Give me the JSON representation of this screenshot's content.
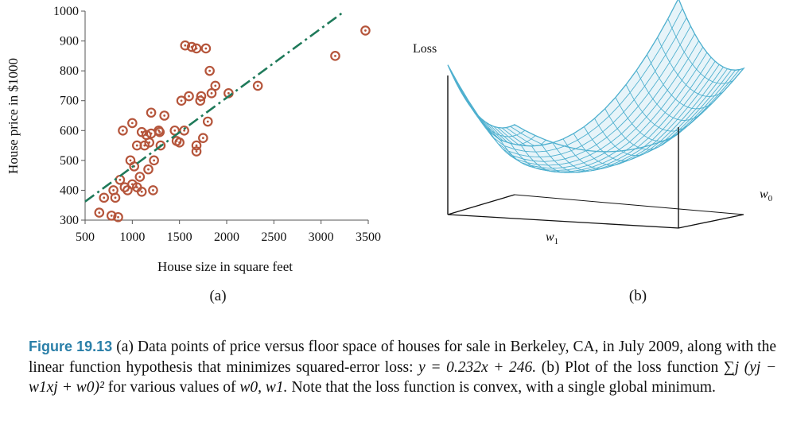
{
  "chart_data": [
    {
      "type": "scatter",
      "panel_label": "(a)",
      "xlabel": "House size in square feet",
      "ylabel": "House price in $1000",
      "xlim": [
        500,
        3500
      ],
      "ylim": [
        300,
        1000
      ],
      "xticks": [
        "500",
        "1000",
        "1500",
        "2000",
        "2500",
        "3000",
        "3500"
      ],
      "yticks": [
        "300",
        "400",
        "500",
        "600",
        "700",
        "800",
        "900",
        "1000"
      ],
      "x": [
        650,
        700,
        780,
        800,
        820,
        850,
        870,
        900,
        920,
        950,
        980,
        1000,
        1000,
        1020,
        1050,
        1050,
        1080,
        1100,
        1100,
        1130,
        1150,
        1170,
        1180,
        1200,
        1200,
        1220,
        1230,
        1280,
        1290,
        1300,
        1340,
        1450,
        1470,
        1500,
        1520,
        1550,
        1560,
        1600,
        1630,
        1680,
        1680,
        1680,
        1720,
        1730,
        1750,
        1780,
        1800,
        1820,
        1840,
        1880,
        2020,
        2330,
        3150,
        3470
      ],
      "y": [
        325,
        375,
        315,
        400,
        375,
        310,
        435,
        600,
        410,
        400,
        500,
        625,
        420,
        480,
        410,
        550,
        445,
        595,
        395,
        550,
        585,
        470,
        560,
        660,
        590,
        400,
        500,
        600,
        595,
        550,
        650,
        600,
        565,
        560,
        700,
        600,
        885,
        715,
        880,
        550,
        530,
        875,
        700,
        715,
        575,
        875,
        630,
        800,
        725,
        750,
        725,
        750,
        850,
        935
      ],
      "fit_line": {
        "slope": 0.232,
        "intercept": 246,
        "x_range": [
          500,
          3250
        ]
      },
      "grid": false
    },
    {
      "type": "surface",
      "panel_label": "(b)",
      "zlabel": "Loss",
      "xlabel": "w1",
      "ylabel": "w0"
    }
  ],
  "caption": {
    "figure_number": "Figure 19.13",
    "text_1": "(a) Data points of price versus floor space of houses for sale in Berkeley, CA, in July 2009, along with the linear function hypothesis that minimizes squared-error loss:",
    "equation": "y = 0.232x + 246.",
    "text_2": "(b) Plot of the loss function",
    "loss_expr": "∑j (yj − w1xj + w0)²",
    "text_3": "for various values of",
    "vars": "w0, w1.",
    "text_4": "Note that the loss function is convex, with a single global minimum."
  },
  "colors": {
    "points": "#b5553b",
    "fit_line": "#1f7a5a",
    "mesh": "#4fb0cf",
    "mesh_fill": "#e7f4f9",
    "caption_accent": "#2a7fa8"
  }
}
